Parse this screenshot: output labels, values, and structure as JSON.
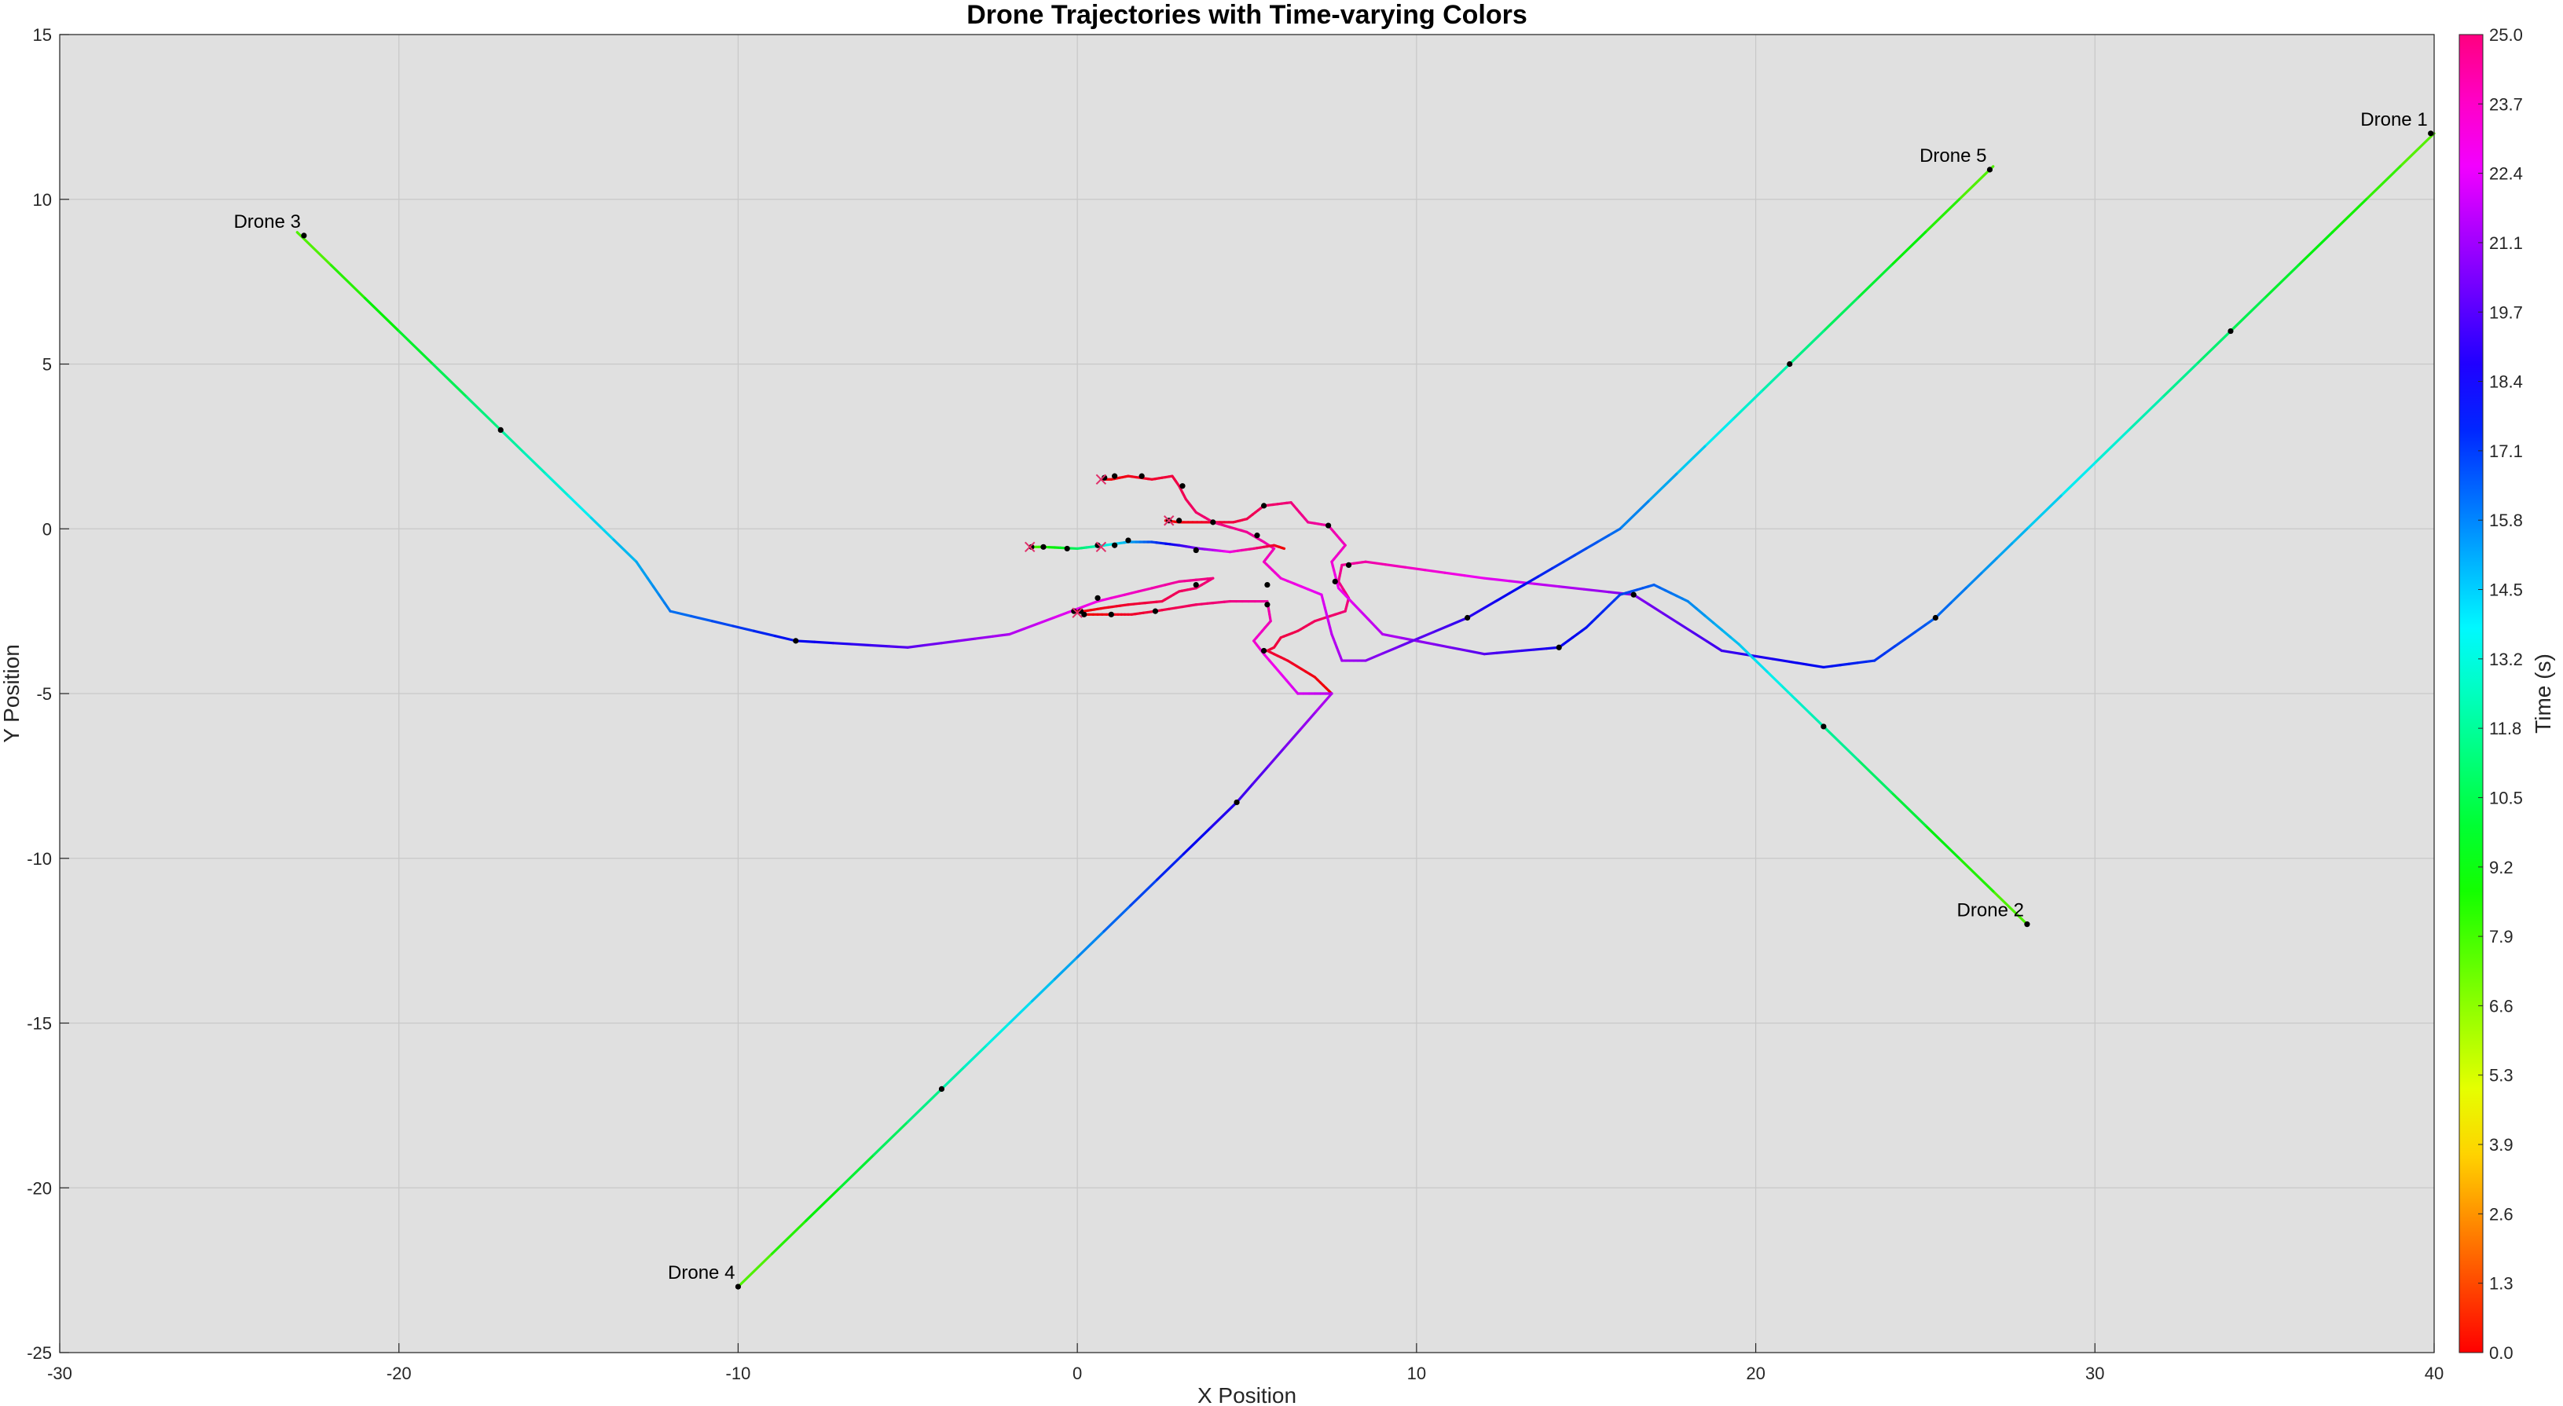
{
  "chart_data": {
    "type": "line",
    "title": "Drone Trajectories with Time-varying Colors",
    "xlabel": "X Position",
    "ylabel": "Y Position",
    "xlim": [
      -30,
      40
    ],
    "ylim": [
      -25,
      15
    ],
    "xticks": [
      -30,
      -20,
      -10,
      0,
      10,
      20,
      30,
      40
    ],
    "yticks": [
      -25,
      -20,
      -15,
      -10,
      -5,
      0,
      5,
      10,
      15
    ],
    "grid": true,
    "colorbar": {
      "label": "Time (s)",
      "range": [
        0,
        25
      ],
      "ticks": [
        "0.0",
        "1.3",
        "2.6",
        "3.9",
        "5.3",
        "6.6",
        "7.9",
        "9.2",
        "10.5",
        "11.8",
        "13.2",
        "14.5",
        "15.8",
        "17.1",
        "18.4",
        "19.7",
        "21.1",
        "22.4",
        "23.7",
        "25.0"
      ]
    },
    "series": [
      {
        "name": "Drone 1",
        "points": [
          [
            40,
            12
          ],
          [
            34,
            6
          ],
          [
            28,
            0
          ],
          [
            25.3,
            -2.7
          ],
          [
            23.5,
            -4
          ],
          [
            22,
            -4.2
          ],
          [
            19,
            -3.7
          ],
          [
            16.4,
            -2
          ],
          [
            12,
            -1.5
          ],
          [
            8.5,
            -1
          ],
          [
            7.8,
            -1.1
          ],
          [
            7.7,
            -1.6
          ],
          [
            8,
            -2.1
          ],
          [
            7.9,
            -2.5
          ],
          [
            7,
            -2.8
          ],
          [
            6.5,
            -3.1
          ],
          [
            6,
            -3.3
          ],
          [
            5.8,
            -3.6
          ],
          [
            5.6,
            -3.7
          ],
          [
            6.2,
            -4
          ],
          [
            7,
            -4.5
          ],
          [
            7.5,
            -5
          ]
        ],
        "markers": [
          [
            39.9,
            12
          ],
          [
            34,
            6
          ],
          [
            25.3,
            -2.7
          ],
          [
            16.4,
            -2
          ],
          [
            8,
            -1.1
          ]
        ]
      },
      {
        "name": "Drone 2",
        "points": [
          [
            28,
            -12
          ],
          [
            22,
            -6
          ],
          [
            19.5,
            -3.5
          ],
          [
            18,
            -2.2
          ],
          [
            17,
            -1.7
          ],
          [
            16,
            -2
          ],
          [
            15,
            -3
          ],
          [
            14.2,
            -3.6
          ],
          [
            12,
            -3.8
          ],
          [
            9,
            -3.2
          ],
          [
            7.7,
            -1.8
          ],
          [
            7.5,
            -1
          ],
          [
            7.9,
            -0.5
          ],
          [
            7.4,
            0.1
          ],
          [
            6.8,
            0.2
          ],
          [
            6.3,
            0.8
          ],
          [
            5.5,
            0.7
          ],
          [
            5,
            0.3
          ],
          [
            4.6,
            0.2
          ],
          [
            3.8,
            0.2
          ],
          [
            3,
            0.2
          ],
          [
            2.6,
            0.25
          ]
        ],
        "markers": [
          [
            28,
            -12
          ],
          [
            22,
            -6
          ],
          [
            14.2,
            -3.6
          ],
          [
            7.6,
            -1.6
          ],
          [
            7.4,
            0.1
          ],
          [
            5.5,
            0.7
          ],
          [
            4,
            0.2
          ],
          [
            3,
            0.25
          ],
          [
            2.7,
            0.25
          ]
        ]
      },
      {
        "name": "Drone 3",
        "points": [
          [
            -23,
            9
          ],
          [
            -17,
            3
          ],
          [
            -13,
            -1
          ],
          [
            -12,
            -2.5
          ],
          [
            -8.3,
            -3.4
          ],
          [
            -5,
            -3.6
          ],
          [
            -2,
            -3.2
          ],
          [
            0.6,
            -2.2
          ],
          [
            3,
            -1.6
          ],
          [
            4,
            -1.5
          ],
          [
            3.5,
            -1.8
          ],
          [
            3,
            -1.9
          ],
          [
            2.5,
            -2.2
          ],
          [
            1.5,
            -2.3
          ],
          [
            0.8,
            -2.4
          ],
          [
            0.2,
            -2.5
          ],
          [
            -0.1,
            -2.5
          ]
        ],
        "markers": [
          [
            -22.8,
            8.9
          ],
          [
            -17,
            3
          ],
          [
            -8.3,
            -3.4
          ],
          [
            0.6,
            -2.1
          ],
          [
            3.5,
            -1.7
          ],
          [
            0.1,
            -2.5
          ],
          [
            -0.1,
            -2.5
          ]
        ]
      },
      {
        "name": "Drone 4",
        "points": [
          [
            -10,
            -23
          ],
          [
            -4,
            -17
          ],
          [
            0,
            -13
          ],
          [
            4.7,
            -8.3
          ],
          [
            7.5,
            -5
          ],
          [
            7.5,
            -5
          ],
          [
            6.5,
            -5
          ],
          [
            5.5,
            -3.8
          ],
          [
            5.2,
            -3.4
          ],
          [
            5.7,
            -2.8
          ],
          [
            5.6,
            -2.2
          ],
          [
            4.5,
            -2.2
          ],
          [
            3.5,
            -2.3
          ],
          [
            2.3,
            -2.5
          ],
          [
            1.6,
            -2.6
          ],
          [
            1,
            -2.6
          ],
          [
            0.2,
            -2.6
          ]
        ],
        "markers": [
          [
            -10,
            -23
          ],
          [
            -4,
            -17
          ],
          [
            4.7,
            -8.3
          ],
          [
            5.5,
            -3.7
          ],
          [
            5.6,
            -2.3
          ],
          [
            2.3,
            -2.5
          ],
          [
            1,
            -2.6
          ],
          [
            0.2,
            -2.6
          ]
        ]
      },
      {
        "name": "Drone 5",
        "points": [
          [
            27,
            11
          ],
          [
            21,
            5
          ],
          [
            16,
            0
          ],
          [
            14,
            -1.2
          ],
          [
            11.5,
            -2.7
          ],
          [
            8.5,
            -4
          ],
          [
            7.8,
            -4
          ],
          [
            7.5,
            -3.2
          ],
          [
            7.2,
            -2
          ],
          [
            6,
            -1.5
          ],
          [
            5.5,
            -1
          ],
          [
            5.8,
            -0.6
          ],
          [
            5.5,
            -0.4
          ],
          [
            5,
            -0.1
          ],
          [
            4,
            0.2
          ],
          [
            3.5,
            0.5
          ],
          [
            3.2,
            0.9
          ],
          [
            3,
            1.3
          ],
          [
            2.8,
            1.6
          ],
          [
            2.2,
            1.5
          ],
          [
            1.5,
            1.6
          ],
          [
            1,
            1.5
          ],
          [
            0.7,
            1.5
          ]
        ],
        "markers": [
          [
            26.9,
            10.9
          ],
          [
            21,
            5
          ],
          [
            11.5,
            -2.7
          ],
          [
            5.6,
            -1.7
          ],
          [
            5.3,
            -0.2
          ],
          [
            3.1,
            1.3
          ],
          [
            1.9,
            1.6
          ],
          [
            1.1,
            1.6
          ],
          [
            0.8,
            1.55
          ]
        ]
      },
      {
        "name": "",
        "points": [
          [
            -1.4,
            -0.55
          ],
          [
            -1,
            -0.55
          ],
          [
            0,
            -0.6
          ],
          [
            0.8,
            -0.5
          ],
          [
            1.5,
            -0.4
          ],
          [
            2.2,
            -0.4
          ],
          [
            3,
            -0.5
          ],
          [
            3.6,
            -0.6
          ],
          [
            4.5,
            -0.7
          ],
          [
            5.2,
            -0.6
          ],
          [
            5.8,
            -0.5
          ],
          [
            6.1,
            -0.6
          ]
        ],
        "markers": [
          [
            -1.35,
            -0.55
          ],
          [
            -1,
            -0.55
          ],
          [
            -0.3,
            -0.6
          ],
          [
            0.6,
            -0.5
          ],
          [
            1.1,
            -0.5
          ],
          [
            1.5,
            -0.35
          ],
          [
            3.5,
            -0.65
          ]
        ]
      }
    ],
    "endpoint_crosses": [
      [
        -1.4,
        -0.55
      ],
      [
        0.7,
        1.5
      ],
      [
        2.7,
        0.25
      ],
      [
        0.7,
        -0.55
      ],
      [
        0,
        -2.55
      ]
    ],
    "annotations": [
      {
        "text": "Drone 1",
        "x": 39.9,
        "y": 12
      },
      {
        "text": "Drone 2",
        "x": 28,
        "y": -12
      },
      {
        "text": "Drone 3",
        "x": -22.8,
        "y": 8.9
      },
      {
        "text": "Drone 4",
        "x": -10,
        "y": -23
      },
      {
        "text": "Drone 5",
        "x": 26.9,
        "y": 10.9
      }
    ]
  }
}
